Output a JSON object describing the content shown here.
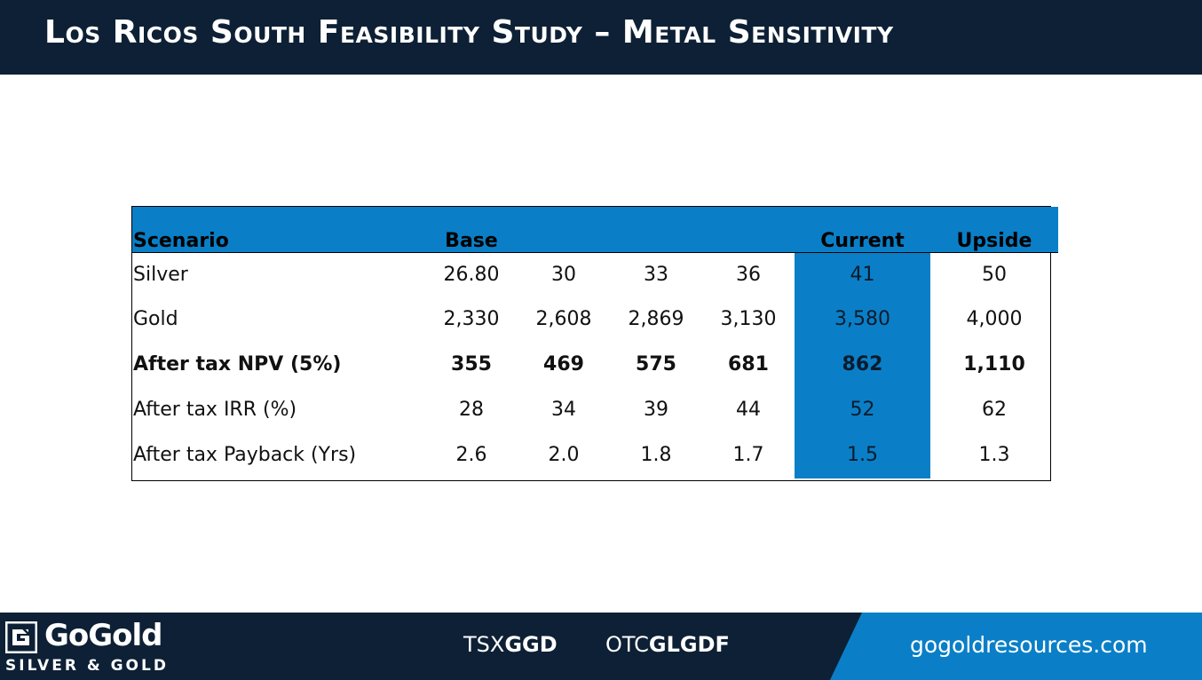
{
  "title": "Los Ricos South Feasibility Study – Metal Sensitivity",
  "table": {
    "headers": [
      "Scenario",
      "Base",
      "",
      "",
      "",
      "Current",
      "Upside"
    ],
    "rows": [
      {
        "label": "Silver",
        "bold": false,
        "values": [
          "26.80",
          "30",
          "33",
          "36",
          "41",
          "50"
        ]
      },
      {
        "label": "Gold",
        "bold": false,
        "values": [
          "2,330",
          "2,608",
          "2,869",
          "3,130",
          "3,580",
          "4,000"
        ]
      },
      {
        "label": "After tax NPV (5%)",
        "bold": true,
        "values": [
          "355",
          "469",
          "575",
          "681",
          "862",
          "1,110"
        ]
      },
      {
        "label": "After tax IRR (%)",
        "bold": false,
        "values": [
          "28",
          "34",
          "39",
          "44",
          "52",
          "62"
        ]
      },
      {
        "label": "After tax Payback (Yrs)",
        "bold": false,
        "values": [
          "2.6",
          "2.0",
          "1.8",
          "1.7",
          "1.5",
          "1.3"
        ]
      }
    ],
    "highlight_color": "#0a7fc7"
  },
  "footer": {
    "logo_name": "GoGold",
    "logo_tagline": "SILVER & GOLD",
    "logo_icon": "gogold-logo-icon",
    "tsx_prefix": "TSX",
    "tsx_symbol": "GGD",
    "otc_prefix": "OTC",
    "otc_symbol": "GLGDF",
    "website": "gogoldresources.com"
  },
  "colors": {
    "navy": "#0d2035",
    "accent_blue": "#0a7fc7"
  }
}
